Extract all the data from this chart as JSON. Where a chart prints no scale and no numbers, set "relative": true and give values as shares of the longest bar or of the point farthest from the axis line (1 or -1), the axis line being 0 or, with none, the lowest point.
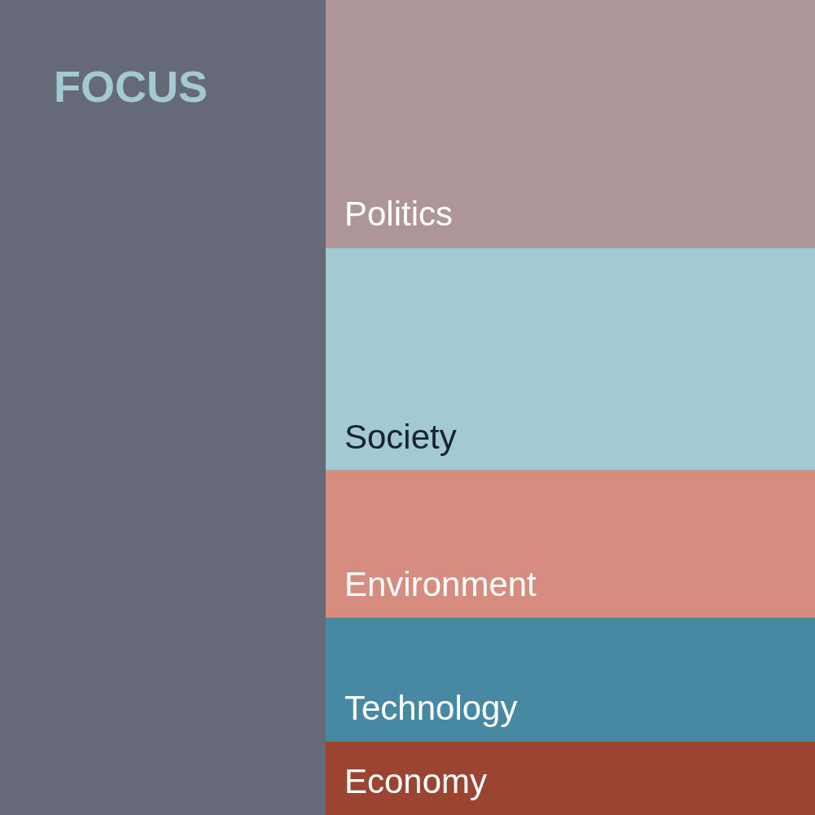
{
  "chart_data": {
    "type": "bar",
    "title": "FOCUS",
    "relative": true,
    "stacked": true,
    "categories": [
      null
    ],
    "series": [
      {
        "name": "Economy",
        "color": "#9a4431",
        "values": [
          0.09
        ]
      },
      {
        "name": "Technology",
        "color": "#4789a2",
        "values": [
          0.152
        ]
      },
      {
        "name": "Environment",
        "color": "#d68c7e",
        "values": [
          0.181
        ]
      },
      {
        "name": "Society",
        "color": "#a3c9d3",
        "values": [
          0.273
        ]
      },
      {
        "name": "Politics",
        "color": "#ae9698",
        "values": [
          0.304
        ]
      }
    ]
  }
}
